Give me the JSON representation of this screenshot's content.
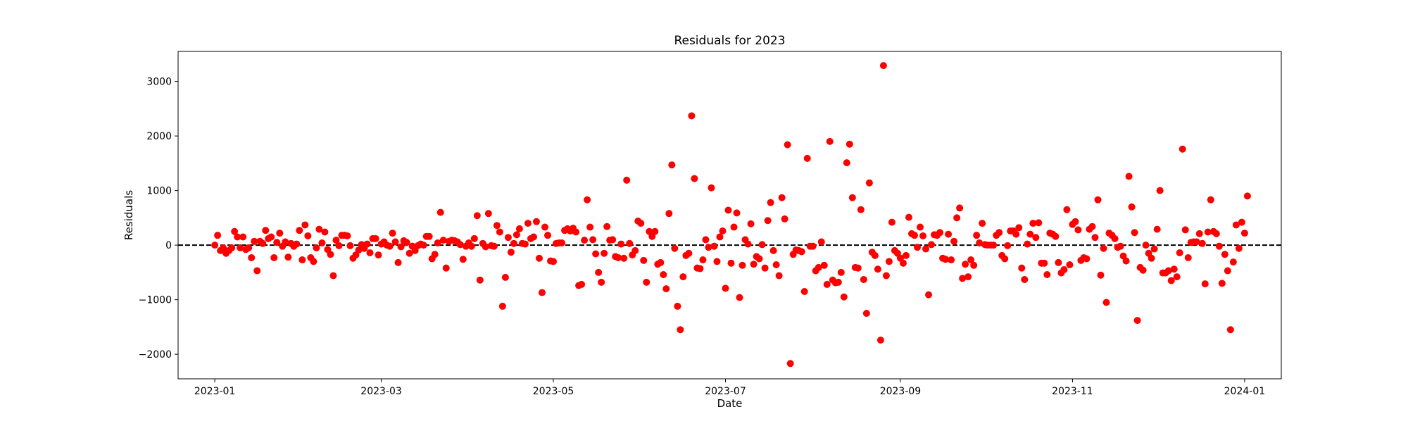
{
  "chart_data": {
    "type": "scatter",
    "title": "Residuals for 2023",
    "xlabel": "Date",
    "ylabel": "Residuals",
    "xlim": [
      "2022-12-19",
      "2024-01-14"
    ],
    "ylim": [
      -2450,
      3550
    ],
    "x_ticks": [
      "2023-01-01",
      "2023-03-01",
      "2023-05-01",
      "2023-07-01",
      "2023-09-01",
      "2023-11-01",
      "2024-01-01"
    ],
    "x_tick_labels": [
      "2023-01",
      "2023-03",
      "2023-05",
      "2023-07",
      "2023-09",
      "2023-11",
      "2024-01"
    ],
    "y_ticks": [
      -2000,
      -1000,
      0,
      1000,
      2000,
      3000
    ],
    "y_tick_labels": [
      "−2000",
      "−1000",
      "0",
      "1000",
      "2000",
      "3000"
    ],
    "reference_line": {
      "y": 0,
      "style": "dashed",
      "color": "#000000"
    },
    "grid": false,
    "marker_color": "#ff0000",
    "series": [
      {
        "start_date": "2023-01-01",
        "frequency": "daily",
        "values": [
          0,
          180,
          -100,
          -50,
          -150,
          -100,
          -50,
          250,
          150,
          -50,
          150,
          -80,
          -50,
          -230,
          70,
          -470,
          70,
          30,
          270,
          120,
          150,
          -230,
          50,
          220,
          -20,
          60,
          -220,
          30,
          -20,
          20,
          270,
          -270,
          370,
          170,
          -230,
          -300,
          -50,
          290,
          40,
          240,
          -80,
          -170,
          -560,
          90,
          -10,
          180,
          180,
          170,
          -10,
          -240,
          -180,
          -90,
          10,
          -60,
          20,
          -140,
          120,
          120,
          -180,
          20,
          60,
          0,
          -20,
          220,
          60,
          -320,
          -30,
          80,
          50,
          -150,
          -20,
          -100,
          -10,
          20,
          0,
          160,
          160,
          -250,
          -170,
          40,
          600,
          90,
          -420,
          70,
          90,
          80,
          60,
          10,
          -260,
          -20,
          40,
          -20,
          120,
          540,
          -640,
          30,
          -30,
          580,
          -10,
          -20,
          360,
          240,
          -1120,
          -590,
          140,
          -130,
          30,
          190,
          300,
          30,
          20,
          400,
          120,
          150,
          430,
          -240,
          -870,
          330,
          180,
          -290,
          -300,
          30,
          40,
          40,
          270,
          300,
          260,
          310,
          240,
          -740,
          -720,
          90,
          830,
          330,
          100,
          -160,
          -500,
          -680,
          -150,
          340,
          90,
          100,
          -210,
          -230,
          20,
          -240,
          1190,
          30,
          -180,
          -100,
          440,
          400,
          -280,
          -680,
          250,
          160,
          250,
          -350,
          -320,
          -540,
          -800,
          580,
          1470,
          -60,
          -1120,
          -1550,
          -580,
          -190,
          -150,
          2370,
          1220,
          -420,
          -430,
          -270,
          100,
          -40,
          1050,
          -20,
          -300,
          150,
          260,
          -790,
          640,
          -330,
          330,
          590,
          -960,
          -370,
          100,
          20,
          390,
          -350,
          -210,
          -250,
          10,
          -420,
          450,
          780,
          -100,
          -360,
          -560,
          870,
          480,
          1840,
          -2170,
          -170,
          -90,
          -100,
          -120,
          -850,
          1590,
          -20,
          -20,
          -470,
          -410,
          60,
          -370,
          -720,
          1900,
          -640,
          -690,
          -680,
          -500,
          -950,
          1510,
          1850,
          870,
          -410,
          -420,
          650,
          -630,
          -1250,
          1140,
          -130,
          -190,
          -440,
          -1740,
          3290,
          -560,
          -300,
          420,
          -100,
          -150,
          -240,
          -330,
          -190,
          510,
          210,
          180,
          -40,
          330,
          170,
          -70,
          -910,
          10,
          190,
          180,
          230,
          -240,
          -260,
          200,
          -270,
          70,
          500,
          680,
          -610,
          -350,
          -580,
          -270,
          -370,
          180,
          40,
          400,
          10,
          0,
          0,
          0,
          180,
          230,
          -190,
          -250,
          -10,
          260,
          260,
          200,
          320,
          -420,
          -630,
          20,
          200,
          400,
          140,
          410,
          -330,
          -330,
          -540,
          220,
          200,
          160,
          -320,
          -510,
          -450,
          650,
          -360,
          380,
          430,
          280,
          -280,
          -230,
          -250,
          290,
          340,
          140,
          830,
          -550,
          -60,
          -1050,
          220,
          180,
          120,
          -40,
          -20,
          -200,
          -290,
          1260,
          700,
          230,
          -1380,
          -410,
          -460,
          0,
          -150,
          -240,
          -70,
          290,
          1000,
          -510,
          -510,
          -470,
          -650,
          -440,
          -580,
          -140,
          1760,
          280,
          -230,
          50,
          60,
          60,
          210,
          30,
          -710,
          240,
          830,
          250,
          210,
          -20,
          -700,
          -170,
          -470,
          -1550,
          -310,
          370,
          -60,
          420,
          220,
          900
        ]
      }
    ]
  }
}
